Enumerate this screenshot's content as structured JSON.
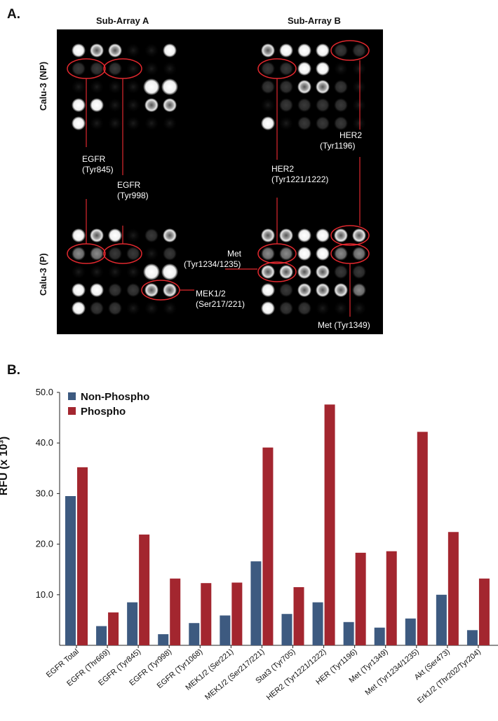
{
  "panel_a": {
    "letter": "A.",
    "subarray_a_title": "Sub-Array A",
    "subarray_b_title": "Sub-Array B",
    "row_np_label": "Calu-3 (NP)",
    "row_p_label": "Calu-3 (P)",
    "annotations": {
      "egfr_845": [
        "EGFR",
        "(Tyr845)"
      ],
      "egfr_998": [
        "EGFR",
        "(Tyr998)"
      ],
      "her2_1221": [
        "HER2",
        "(Tyr1221/1222)"
      ],
      "her2_1196": [
        "HER2",
        "(Tyr1196)"
      ],
      "met_1234": [
        "Met",
        "(Tyr1234/1235)"
      ],
      "mek12": [
        "MEK1/2",
        "(Ser217/221)"
      ],
      "met_1349": [
        "Met (Tyr1349)"
      ]
    }
  },
  "panel_b": {
    "letter": "B."
  },
  "chart_data": {
    "type": "bar",
    "ylabel": "RFU (x 10³)",
    "ylim": [
      0,
      50
    ],
    "yticks": [
      "10.0",
      "20.0",
      "30.0",
      "40.0",
      "50.0"
    ],
    "categories": [
      "EGFR Total",
      "EGFR (Thr669)",
      "EGFR (Tyr845)",
      "EGFR (Tyr998)",
      "EGFR (Tyr1068)",
      "MEK1/2 (Ser221)",
      "MEK1/2 (Ser217/221)",
      "Stat3 (Tyr705)",
      "HER2 (Tyr1221/1222)",
      "HER (Tyr1196)",
      "Met (Tyr1349)",
      "Met (Tyr1234/1235)",
      "Akt (Ser473)",
      "Erk1/2 (Thr202/Tyr204)"
    ],
    "series": [
      {
        "name": "Non-Phospho",
        "color": "#3d5a80",
        "values": [
          29.5,
          3.8,
          8.5,
          2.2,
          4.4,
          5.9,
          16.6,
          6.2,
          8.5,
          4.6,
          3.5,
          5.3,
          10.0,
          3.0
        ]
      },
      {
        "name": "Phospho",
        "color": "#a3262f",
        "values": [
          35.2,
          6.5,
          21.9,
          13.2,
          12.3,
          12.4,
          39.1,
          11.5,
          47.6,
          18.3,
          18.6,
          42.2,
          22.4,
          13.2
        ]
      }
    ],
    "legend_position": "top-left",
    "grid": false
  }
}
